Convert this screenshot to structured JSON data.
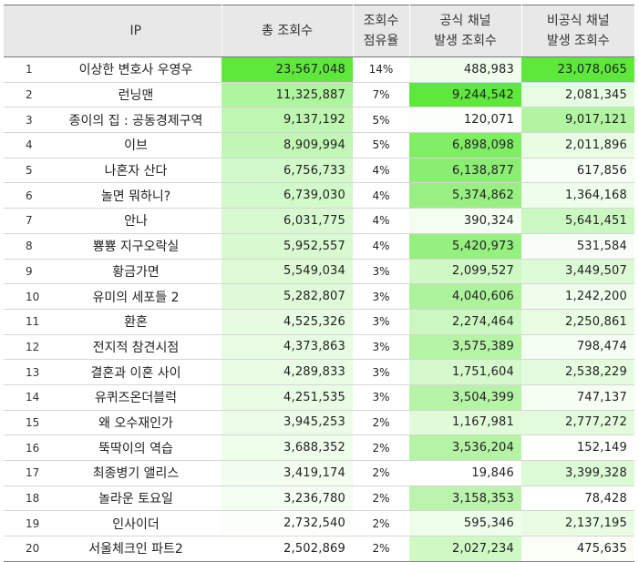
{
  "headers": {
    "rank": "",
    "ip": "IP",
    "total": "총 조회수",
    "share_line1": "조회수",
    "share_line2": "점유율",
    "official_line1": "공식 채널",
    "official_line2": "발생 조회수",
    "unofficial_line1": "비공식 채널",
    "unofficial_line2": "발생 조회수"
  },
  "colors": {
    "heat_max": "#5ee83c",
    "heat_min": "#ffffff",
    "header_bg": "#e8e8e8"
  },
  "rows": [
    {
      "rank": "1",
      "ip": "이상한 변호사 우영우",
      "total": "23,567,048",
      "share": "14%",
      "official": "488,983",
      "unofficial": "23,078,065"
    },
    {
      "rank": "2",
      "ip": "런닝맨",
      "total": "11,325,887",
      "share": "7%",
      "official": "9,244,542",
      "unofficial": "2,081,345"
    },
    {
      "rank": "3",
      "ip": "종이의 집 : 공동경제구역",
      "total": "9,137,192",
      "share": "5%",
      "official": "120,071",
      "unofficial": "9,017,121"
    },
    {
      "rank": "4",
      "ip": "이브",
      "total": "8,909,994",
      "share": "5%",
      "official": "6,898,098",
      "unofficial": "2,011,896"
    },
    {
      "rank": "5",
      "ip": "나혼자 산다",
      "total": "6,756,733",
      "share": "4%",
      "official": "6,138,877",
      "unofficial": "617,856"
    },
    {
      "rank": "6",
      "ip": "놀면 뭐하니?",
      "total": "6,739,030",
      "share": "4%",
      "official": "5,374,862",
      "unofficial": "1,364,168"
    },
    {
      "rank": "7",
      "ip": "안나",
      "total": "6,031,775",
      "share": "4%",
      "official": "390,324",
      "unofficial": "5,641,451"
    },
    {
      "rank": "8",
      "ip": "뿅뿅 지구오락실",
      "total": "5,952,557",
      "share": "4%",
      "official": "5,420,973",
      "unofficial": "531,584"
    },
    {
      "rank": "9",
      "ip": "황금가면",
      "total": "5,549,034",
      "share": "3%",
      "official": "2,099,527",
      "unofficial": "3,449,507"
    },
    {
      "rank": "10",
      "ip": "유미의 세포들 2",
      "total": "5,282,807",
      "share": "3%",
      "official": "4,040,606",
      "unofficial": "1,242,200"
    },
    {
      "rank": "11",
      "ip": "환혼",
      "total": "4,525,326",
      "share": "3%",
      "official": "2,274,464",
      "unofficial": "2,250,861"
    },
    {
      "rank": "12",
      "ip": "전지적 참견시점",
      "total": "4,373,863",
      "share": "3%",
      "official": "3,575,389",
      "unofficial": "798,474"
    },
    {
      "rank": "13",
      "ip": "결혼과 이혼 사이",
      "total": "4,289,833",
      "share": "3%",
      "official": "1,751,604",
      "unofficial": "2,538,229"
    },
    {
      "rank": "14",
      "ip": "유퀴즈온더블럭",
      "total": "4,251,535",
      "share": "3%",
      "official": "3,504,399",
      "unofficial": "747,137"
    },
    {
      "rank": "15",
      "ip": "왜 오수재인가",
      "total": "3,945,253",
      "share": "2%",
      "official": "1,167,981",
      "unofficial": "2,777,272"
    },
    {
      "rank": "16",
      "ip": "뚝딱이의 역습",
      "total": "3,688,352",
      "share": "2%",
      "official": "3,536,204",
      "unofficial": "152,149"
    },
    {
      "rank": "17",
      "ip": "최종병기 앨리스",
      "total": "3,419,174",
      "share": "2%",
      "official": "19,846",
      "unofficial": "3,399,328"
    },
    {
      "rank": "18",
      "ip": "놀라운 토요일",
      "total": "3,236,780",
      "share": "2%",
      "official": "3,158,353",
      "unofficial": "78,428"
    },
    {
      "rank": "19",
      "ip": "인사이더",
      "total": "2,732,540",
      "share": "2%",
      "official": "595,346",
      "unofficial": "2,137,195"
    },
    {
      "rank": "20",
      "ip": "서울체크인 파트2",
      "total": "2,502,869",
      "share": "2%",
      "official": "2,027,234",
      "unofficial": "475,635"
    }
  ]
}
